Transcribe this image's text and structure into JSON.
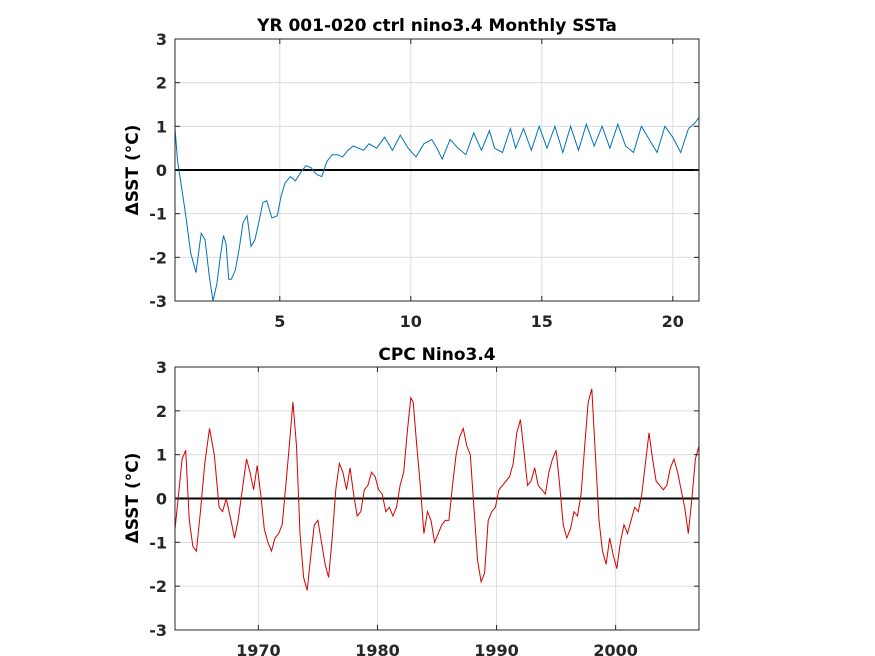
{
  "chart_data": [
    {
      "type": "line",
      "title": "YR 001-020 ctrl nino3.4 Monthly SSTa",
      "ylabel": "ΔSST (°C)",
      "xlim": [
        1,
        21
      ],
      "ylim": [
        -3,
        3
      ],
      "xticks": [
        5,
        10,
        15,
        20
      ],
      "yticks": [
        -3,
        -2,
        -1,
        0,
        1,
        2,
        3
      ],
      "grid": true,
      "zero_line": true,
      "color": "#0072bd",
      "series": [
        {
          "x": [
            1.0,
            1.1,
            1.25,
            1.4,
            1.6,
            1.8,
            2.0,
            2.15,
            2.3,
            2.45,
            2.6,
            2.75,
            2.85,
            2.95,
            3.05,
            3.15,
            3.3,
            3.45,
            3.6,
            3.75,
            3.9,
            4.05,
            4.2,
            4.35,
            4.5,
            4.7,
            4.9,
            5.05,
            5.2,
            5.4,
            5.6,
            5.8,
            6.0,
            6.2,
            6.4,
            6.6,
            6.8,
            7.0,
            7.2,
            7.4,
            7.6,
            7.8,
            8.0,
            8.2,
            8.4,
            8.7,
            9.0,
            9.3,
            9.6,
            9.9,
            10.2,
            10.5,
            10.8,
            11.0,
            11.2,
            11.5,
            11.8,
            12.1,
            12.4,
            12.7,
            13.0,
            13.2,
            13.5,
            13.8,
            14.0,
            14.3,
            14.6,
            14.9,
            15.2,
            15.5,
            15.8,
            16.1,
            16.4,
            16.7,
            17.0,
            17.3,
            17.6,
            17.9,
            18.2,
            18.5,
            18.8,
            19.1,
            19.4,
            19.7,
            20.0,
            20.3,
            20.6,
            20.8,
            21.0
          ],
          "y": [
            0.95,
            0.2,
            -0.4,
            -1.0,
            -1.9,
            -2.35,
            -1.45,
            -1.6,
            -2.4,
            -3.0,
            -2.6,
            -1.9,
            -1.5,
            -1.7,
            -2.5,
            -2.5,
            -2.3,
            -1.8,
            -1.2,
            -1.05,
            -1.75,
            -1.6,
            -1.2,
            -0.75,
            -0.7,
            -1.1,
            -1.05,
            -0.6,
            -0.3,
            -0.15,
            -0.25,
            -0.05,
            0.1,
            0.05,
            -0.1,
            -0.15,
            0.2,
            0.35,
            0.35,
            0.3,
            0.45,
            0.55,
            0.5,
            0.45,
            0.6,
            0.5,
            0.75,
            0.45,
            0.8,
            0.5,
            0.3,
            0.6,
            0.7,
            0.5,
            0.25,
            0.7,
            0.5,
            0.35,
            0.85,
            0.45,
            0.9,
            0.5,
            0.4,
            0.95,
            0.5,
            0.95,
            0.45,
            1.0,
            0.5,
            1.0,
            0.4,
            1.0,
            0.45,
            1.05,
            0.55,
            1.0,
            0.5,
            1.05,
            0.55,
            0.4,
            1.0,
            0.7,
            0.4,
            1.0,
            0.75,
            0.4,
            0.95,
            1.05,
            1.2
          ]
        }
      ]
    },
    {
      "type": "line",
      "title": "CPC Nino3.4",
      "ylabel": "ΔSST (°C)",
      "xlim": [
        1963,
        2007
      ],
      "ylim": [
        -3,
        3
      ],
      "xticks": [
        1970,
        1980,
        1990,
        2000
      ],
      "yticks": [
        -3,
        -2,
        -1,
        0,
        1,
        2,
        3
      ],
      "grid": true,
      "zero_line": true,
      "color": "#d40000",
      "series": [
        {
          "x": [
            1963.0,
            1963.3,
            1963.6,
            1963.9,
            1964.2,
            1964.5,
            1964.8,
            1965.1,
            1965.5,
            1965.9,
            1966.3,
            1966.7,
            1967.0,
            1967.3,
            1967.7,
            1968.0,
            1968.3,
            1968.7,
            1969.0,
            1969.3,
            1969.6,
            1969.9,
            1970.2,
            1970.5,
            1970.8,
            1971.1,
            1971.4,
            1971.7,
            1972.0,
            1972.3,
            1972.6,
            1972.9,
            1973.2,
            1973.5,
            1973.8,
            1974.1,
            1974.4,
            1974.7,
            1975.0,
            1975.3,
            1975.6,
            1975.9,
            1976.2,
            1976.5,
            1976.8,
            1977.1,
            1977.4,
            1977.7,
            1978.0,
            1978.3,
            1978.6,
            1978.9,
            1979.2,
            1979.5,
            1979.8,
            1980.1,
            1980.4,
            1980.7,
            1981.0,
            1981.3,
            1981.6,
            1981.9,
            1982.2,
            1982.5,
            1982.8,
            1983.0,
            1983.3,
            1983.6,
            1983.9,
            1984.2,
            1984.5,
            1984.8,
            1985.1,
            1985.4,
            1985.7,
            1986.0,
            1986.3,
            1986.6,
            1986.9,
            1987.2,
            1987.5,
            1987.8,
            1988.1,
            1988.4,
            1988.7,
            1989.0,
            1989.3,
            1989.6,
            1989.9,
            1990.2,
            1990.5,
            1990.8,
            1991.1,
            1991.4,
            1991.7,
            1992.0,
            1992.3,
            1992.6,
            1992.9,
            1993.2,
            1993.5,
            1993.8,
            1994.1,
            1994.4,
            1994.7,
            1995.0,
            1995.3,
            1995.6,
            1995.9,
            1996.2,
            1996.5,
            1996.8,
            1997.1,
            1997.4,
            1997.7,
            1998.0,
            1998.3,
            1998.6,
            1998.9,
            1999.2,
            1999.5,
            1999.8,
            2000.1,
            2000.4,
            2000.7,
            2001.0,
            2001.3,
            2001.6,
            2001.9,
            2002.2,
            2002.5,
            2002.8,
            2003.1,
            2003.4,
            2003.7,
            2004.0,
            2004.3,
            2004.6,
            2004.9,
            2005.2,
            2005.5,
            2005.8,
            2006.1,
            2006.4,
            2006.7,
            2007.0
          ],
          "y": [
            -0.7,
            0.1,
            0.9,
            1.1,
            -0.5,
            -1.1,
            -1.2,
            -0.4,
            0.8,
            1.6,
            1.0,
            -0.2,
            -0.3,
            0.0,
            -0.5,
            -0.9,
            -0.5,
            0.3,
            0.9,
            0.6,
            0.2,
            0.75,
            0.1,
            -0.7,
            -1.0,
            -1.2,
            -0.9,
            -0.8,
            -0.6,
            0.3,
            1.2,
            2.2,
            1.2,
            -0.8,
            -1.8,
            -2.1,
            -1.3,
            -0.6,
            -0.5,
            -1.0,
            -1.5,
            -1.8,
            -0.9,
            0.2,
            0.8,
            0.6,
            0.2,
            0.7,
            0.1,
            -0.4,
            -0.3,
            0.2,
            0.3,
            0.6,
            0.5,
            0.2,
            0.1,
            -0.3,
            -0.2,
            -0.4,
            -0.2,
            0.3,
            0.6,
            1.5,
            2.3,
            2.2,
            1.2,
            0.3,
            -0.8,
            -0.3,
            -0.5,
            -1.0,
            -0.8,
            -0.6,
            -0.5,
            -0.5,
            0.3,
            1.0,
            1.4,
            1.6,
            1.2,
            1.0,
            -0.2,
            -1.4,
            -1.9,
            -1.7,
            -0.5,
            -0.3,
            -0.2,
            0.2,
            0.3,
            0.4,
            0.5,
            0.8,
            1.5,
            1.8,
            1.1,
            0.3,
            0.4,
            0.7,
            0.3,
            0.2,
            0.1,
            0.6,
            0.9,
            1.1,
            0.3,
            -0.6,
            -0.9,
            -0.7,
            -0.3,
            -0.4,
            0.1,
            1.2,
            2.2,
            2.5,
            1.0,
            -0.5,
            -1.2,
            -1.5,
            -0.9,
            -1.3,
            -1.6,
            -1.0,
            -0.6,
            -0.8,
            -0.5,
            -0.2,
            -0.3,
            0.1,
            0.8,
            1.5,
            0.9,
            0.4,
            0.3,
            0.2,
            0.3,
            0.7,
            0.9,
            0.6,
            0.2,
            -0.2,
            -0.8,
            0.0,
            0.9,
            1.2
          ]
        }
      ]
    }
  ]
}
